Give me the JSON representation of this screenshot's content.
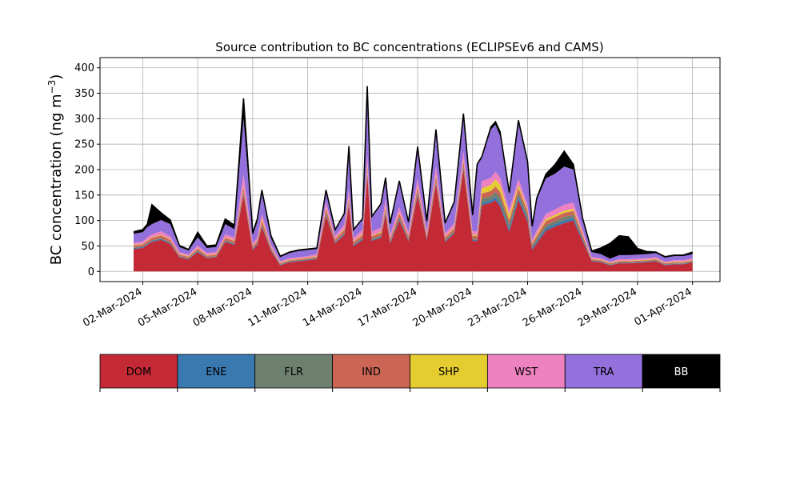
{
  "chart_data": {
    "type": "area",
    "stacked": true,
    "title": "Source contribution to BC concentrations (ECLIPSEv6 and CAMS)",
    "ylabel": "BC concentration (ng m",
    "ylabel_superscript": "−3",
    "ylabel_close": ")",
    "xlabel": "",
    "xlim": [
      "2024-02-28T16:00",
      "2024-04-02T12:00"
    ],
    "ylim": [
      -20,
      420
    ],
    "grid": true,
    "xticks": [
      "02-Mar-2024",
      "05-Mar-2024",
      "08-Mar-2024",
      "11-Mar-2024",
      "14-Mar-2024",
      "17-Mar-2024",
      "20-Mar-2024",
      "23-Mar-2024",
      "26-Mar-2024",
      "29-Mar-2024",
      "01-Apr-2024"
    ],
    "xtick_dates": [
      "2024-03-02",
      "2024-03-05",
      "2024-03-08",
      "2024-03-11",
      "2024-03-14",
      "2024-03-17",
      "2024-03-20",
      "2024-03-23",
      "2024-03-26",
      "2024-03-29",
      "2024-04-01"
    ],
    "yticks": [
      0,
      50,
      100,
      150,
      200,
      250,
      300,
      350,
      400
    ],
    "legend_placement": "below",
    "x": [
      "2024-03-01T12:00",
      "2024-03-02T00:00",
      "2024-03-02T06:00",
      "2024-03-02T12:00",
      "2024-03-03T00:00",
      "2024-03-03T12:00",
      "2024-03-04T00:00",
      "2024-03-04T12:00",
      "2024-03-05T00:00",
      "2024-03-05T12:00",
      "2024-03-06T00:00",
      "2024-03-06T12:00",
      "2024-03-07T00:00",
      "2024-03-07T12:00",
      "2024-03-08T00:00",
      "2024-03-08T06:00",
      "2024-03-08T12:00",
      "2024-03-09T00:00",
      "2024-03-09T12:00",
      "2024-03-10T00:00",
      "2024-03-10T12:00",
      "2024-03-11T00:00",
      "2024-03-11T12:00",
      "2024-03-12T00:00",
      "2024-03-12T12:00",
      "2024-03-13T00:00",
      "2024-03-13T06:00",
      "2024-03-13T12:00",
      "2024-03-14T00:00",
      "2024-03-14T06:00",
      "2024-03-14T12:00",
      "2024-03-15T00:00",
      "2024-03-15T06:00",
      "2024-03-15T12:00",
      "2024-03-16T00:00",
      "2024-03-16T12:00",
      "2024-03-17T00:00",
      "2024-03-17T12:00",
      "2024-03-18T00:00",
      "2024-03-18T12:00",
      "2024-03-19T00:00",
      "2024-03-19T12:00",
      "2024-03-20T00:00",
      "2024-03-20T06:00",
      "2024-03-20T12:00",
      "2024-03-21T00:00",
      "2024-03-21T06:00",
      "2024-03-21T12:00",
      "2024-03-22T00:00",
      "2024-03-22T12:00",
      "2024-03-23T00:00",
      "2024-03-23T06:00",
      "2024-03-23T12:00",
      "2024-03-24T00:00",
      "2024-03-24T12:00",
      "2024-03-25T00:00",
      "2024-03-25T12:00",
      "2024-03-26T00:00",
      "2024-03-26T12:00",
      "2024-03-27T00:00",
      "2024-03-27T12:00",
      "2024-03-28T00:00",
      "2024-03-28T12:00",
      "2024-03-29T00:00",
      "2024-03-29T12:00",
      "2024-03-30T00:00",
      "2024-03-30T12:00",
      "2024-03-31T00:00",
      "2024-03-31T12:00",
      "2024-04-01T00:00"
    ],
    "series": [
      {
        "name": "DOM",
        "color": "#c32a36",
        "values": [
          44,
          46,
          52,
          58,
          62,
          54,
          28,
          24,
          38,
          26,
          28,
          58,
          52,
          150,
          42,
          52,
          88,
          40,
          12,
          18,
          20,
          22,
          24,
          110,
          55,
          72,
          130,
          50,
          62,
          190,
          60,
          66,
          112,
          55,
          100,
          60,
          150,
          62,
          172,
          58,
          75,
          200,
          60,
          60,
          130,
          135,
          140,
          128,
          78,
          140,
          98,
          42,
          55,
          80,
          88,
          95,
          100,
          60,
          20,
          18,
          12,
          16,
          16,
          17,
          18,
          20,
          12,
          14,
          14,
          18
        ]
      },
      {
        "name": "ENE",
        "color": "#3a78b0",
        "values": [
          2,
          2,
          2,
          2,
          2,
          2,
          1,
          1,
          2,
          1,
          1,
          2,
          2,
          3,
          2,
          2,
          2,
          2,
          1,
          1,
          1,
          1,
          1,
          3,
          2,
          2,
          3,
          2,
          2,
          3,
          2,
          2,
          3,
          2,
          3,
          2,
          3,
          2,
          3,
          2,
          2,
          3,
          2,
          2,
          5,
          5,
          6,
          6,
          5,
          6,
          5,
          3,
          4,
          5,
          5,
          5,
          5,
          3,
          1,
          1,
          1,
          1,
          1,
          1,
          1,
          1,
          1,
          1,
          1,
          1
        ]
      },
      {
        "name": "FLR",
        "color": "#6e8070",
        "values": [
          1,
          1,
          1,
          1,
          1,
          1,
          1,
          1,
          1,
          1,
          1,
          1,
          1,
          2,
          1,
          1,
          2,
          1,
          1,
          1,
          1,
          1,
          1,
          2,
          1,
          2,
          2,
          1,
          2,
          3,
          2,
          2,
          3,
          2,
          3,
          2,
          3,
          2,
          3,
          2,
          2,
          4,
          2,
          2,
          8,
          8,
          10,
          12,
          10,
          8,
          7,
          4,
          5,
          6,
          6,
          7,
          6,
          3,
          1,
          1,
          1,
          1,
          1,
          1,
          1,
          1,
          1,
          1,
          1,
          1
        ]
      },
      {
        "name": "IND",
        "color": "#cb6655",
        "values": [
          4,
          4,
          5,
          5,
          6,
          5,
          3,
          3,
          4,
          3,
          3,
          5,
          5,
          10,
          4,
          5,
          8,
          4,
          2,
          2,
          2,
          2,
          3,
          8,
          5,
          6,
          9,
          5,
          6,
          10,
          5,
          6,
          8,
          5,
          8,
          5,
          9,
          5,
          10,
          5,
          6,
          10,
          6,
          6,
          10,
          10,
          11,
          10,
          8,
          10,
          8,
          5,
          6,
          8,
          8,
          8,
          8,
          6,
          2,
          2,
          2,
          2,
          2,
          2,
          2,
          2,
          2,
          2,
          2,
          2
        ]
      },
      {
        "name": "SHP",
        "color": "#e5cc30",
        "values": [
          1,
          1,
          1,
          1,
          1,
          1,
          1,
          1,
          1,
          1,
          1,
          1,
          1,
          3,
          1,
          1,
          4,
          1,
          1,
          1,
          1,
          1,
          1,
          2,
          1,
          2,
          3,
          1,
          2,
          3,
          1,
          2,
          3,
          1,
          2,
          1,
          3,
          1,
          3,
          1,
          2,
          3,
          2,
          2,
          10,
          12,
          14,
          14,
          10,
          6,
          4,
          2,
          3,
          4,
          4,
          4,
          4,
          2,
          1,
          1,
          1,
          1,
          1,
          1,
          1,
          1,
          1,
          1,
          1,
          1
        ]
      },
      {
        "name": "WST",
        "color": "#ee82c0",
        "values": [
          4,
          5,
          6,
          6,
          7,
          6,
          4,
          3,
          5,
          4,
          4,
          6,
          6,
          22,
          5,
          6,
          9,
          5,
          3,
          3,
          3,
          3,
          4,
          12,
          6,
          8,
          14,
          7,
          8,
          20,
          8,
          8,
          12,
          7,
          10,
          7,
          14,
          7,
          15,
          7,
          8,
          15,
          7,
          7,
          14,
          14,
          15,
          14,
          10,
          12,
          9,
          6,
          8,
          10,
          11,
          12,
          12,
          8,
          3,
          3,
          2,
          3,
          3,
          3,
          3,
          3,
          2,
          3,
          3,
          3
        ]
      },
      {
        "name": "TRA",
        "color": "#9370db",
        "values": [
          18,
          18,
          20,
          20,
          22,
          24,
          10,
          8,
          16,
          10,
          10,
          20,
          16,
          110,
          16,
          30,
          40,
          12,
          8,
          10,
          12,
          12,
          10,
          20,
          10,
          20,
          80,
          14,
          20,
          130,
          28,
          45,
          40,
          20,
          50,
          18,
          60,
          18,
          70,
          18,
          40,
          70,
          30,
          130,
          45,
          95,
          92,
          82,
          30,
          110,
          80,
          25,
          60,
          70,
          70,
          75,
          65,
          20,
          10,
          8,
          6,
          8,
          8,
          8,
          8,
          8,
          8,
          8,
          8,
          8
        ]
      },
      {
        "name": "BB",
        "color": "#000000",
        "values": [
          4,
          5,
          6,
          38,
          14,
          8,
          3,
          2,
          10,
          4,
          4,
          10,
          8,
          40,
          5,
          6,
          7,
          5,
          2,
          2,
          2,
          2,
          2,
          3,
          2,
          2,
          5,
          2,
          2,
          5,
          2,
          2,
          3,
          2,
          2,
          2,
          3,
          2,
          3,
          2,
          2,
          5,
          2,
          2,
          3,
          5,
          6,
          8,
          4,
          5,
          5,
          2,
          3,
          8,
          18,
          30,
          10,
          3,
          2,
          12,
          30,
          38,
          36,
          12,
          5,
          2,
          2,
          2,
          2,
          4
        ]
      }
    ]
  }
}
